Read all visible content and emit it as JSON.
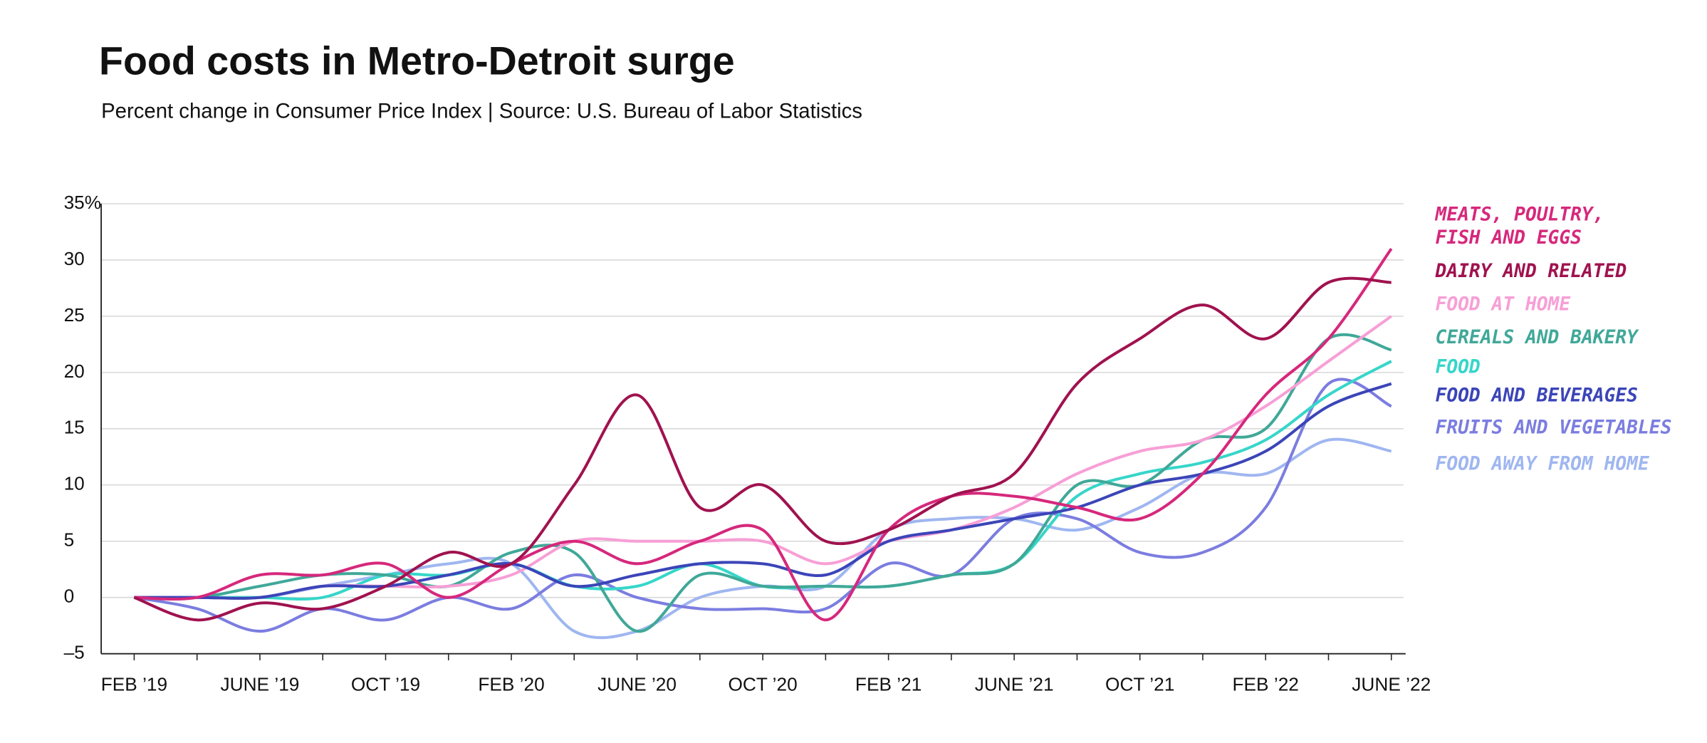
{
  "chart_data": {
    "type": "line",
    "title": "Food costs in Metro-Detroit surge",
    "subtitle": "Percent change in Consumer Price Index  | Source: U.S. Bureau of Labor Statistics",
    "categories": [
      "FEB ’19",
      null,
      "JUNE ’19",
      null,
      "OCT ’19",
      null,
      "FEB ’20",
      null,
      "JUNE ’20",
      null,
      "OCT ’20",
      null,
      "FEB ’21",
      null,
      "JUNE ’21",
      null,
      "OCT ’21",
      null,
      "FEB ’22",
      null,
      "JUNE ’22"
    ],
    "ylim": [
      -5,
      35
    ],
    "yticks": [
      {
        "value": -5,
        "label": "–5"
      },
      0,
      5,
      10,
      15,
      20,
      25,
      30,
      {
        "value": 35,
        "label": "35%"
      }
    ],
    "grid": true,
    "series": [
      {
        "name": "MEATS, POULTRY, FISH AND EGGS",
        "color": "#d6287c",
        "values": [
          0,
          0,
          2,
          2,
          3,
          0,
          3,
          5,
          3,
          5,
          6,
          -2,
          6,
          9,
          9,
          8,
          7,
          11,
          18,
          23,
          31
        ]
      },
      {
        "name": "DAIRY AND RELATED",
        "color": "#a0124f",
        "values": [
          0,
          -2,
          -0.5,
          -1,
          1,
          4,
          3,
          10,
          18,
          8,
          10,
          5,
          6,
          9,
          11,
          19,
          23,
          26,
          23,
          28,
          28
        ]
      },
      {
        "name": "FOOD AT HOME",
        "color": "#f79fd6",
        "values": [
          0,
          0,
          0,
          1,
          1,
          1,
          2,
          5,
          5,
          5,
          5,
          3,
          5,
          6,
          8,
          11,
          13,
          14,
          17,
          21,
          25
        ]
      },
      {
        "name": "CEREALS AND BAKERY",
        "color": "#40a898",
        "values": [
          0,
          0,
          1,
          2,
          2,
          1,
          4,
          4,
          -3,
          2,
          1,
          1,
          1,
          2,
          3,
          10,
          10,
          14,
          15,
          23,
          22
        ]
      },
      {
        "name": "FOOD",
        "color": "#36d6c9",
        "values": [
          0,
          0,
          0,
          0,
          2,
          2,
          3,
          1,
          1,
          3,
          1,
          1,
          1,
          2,
          3,
          9,
          11,
          12,
          14,
          18,
          21
        ]
      },
      {
        "name": "FOOD AND BEVERAGES",
        "color": "#3b45b8",
        "values": [
          0,
          0,
          0,
          1,
          1,
          2,
          3,
          1,
          2,
          3,
          3,
          2,
          5,
          6,
          7,
          8,
          10,
          11,
          13,
          17,
          19
        ]
      },
      {
        "name": "FRUITS AND VEGETABLES",
        "color": "#7b7de0",
        "values": [
          0,
          -1,
          -3,
          -1,
          -2,
          0,
          -1,
          2,
          0,
          -1,
          -1,
          -1,
          3,
          2,
          7,
          7,
          4,
          4,
          8,
          19,
          17
        ]
      },
      {
        "name": "FOOD AWAY FROM HOME",
        "color": "#9fb6f0",
        "values": [
          0,
          0,
          0,
          1,
          2,
          3,
          3,
          -3,
          -3,
          0,
          1,
          1,
          6,
          7,
          7,
          6,
          8,
          11,
          11,
          14,
          13
        ]
      }
    ]
  }
}
